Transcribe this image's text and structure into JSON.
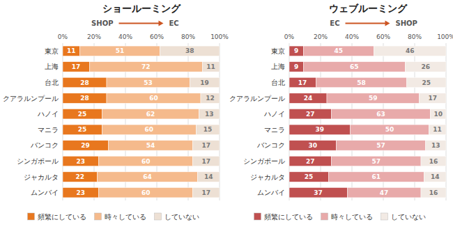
{
  "chart_data": [
    {
      "type": "bar",
      "title": "ショールーミング",
      "orientation": "horizontal",
      "stacked": true,
      "data_labels": true,
      "grid": true,
      "legend": "bottom",
      "annotations": [
        "SHOP",
        "EC"
      ],
      "categories": [
        "東京",
        "上海",
        "台北",
        "クアラルンプール",
        "ハノイ",
        "マニラ",
        "バンコク",
        "シンガポール",
        "ジャカルタ",
        "ムンバイ"
      ],
      "series": [
        {
          "name": "頻繁にしている",
          "color": "#E8771E",
          "values": [
            11,
            17,
            28,
            28,
            25,
            25,
            29,
            23,
            22,
            23
          ]
        },
        {
          "name": "時々している",
          "color": "#F5BA8C",
          "values": [
            51,
            72,
            53,
            60,
            62,
            60,
            54,
            60,
            64,
            60
          ]
        },
        {
          "name": "していない",
          "color": "#EDE0D4",
          "values": [
            38,
            11,
            19,
            12,
            13,
            15,
            17,
            17,
            14,
            17
          ]
        }
      ],
      "xlim": [
        0,
        100
      ],
      "xticks": [
        {
          "value": 0,
          "label": "0%"
        },
        {
          "value": 20,
          "label": "20%"
        },
        {
          "value": 40,
          "label": "40%"
        },
        {
          "value": 60,
          "label": "60%"
        },
        {
          "value": 80,
          "label": "80%"
        },
        {
          "value": 100,
          "label": "100%"
        }
      ]
    },
    {
      "type": "bar",
      "title": "ウェブルーミング",
      "orientation": "horizontal",
      "stacked": true,
      "data_labels": true,
      "grid": true,
      "legend": "bottom",
      "annotations": [
        "EC",
        "SHOP"
      ],
      "categories": [
        "東京",
        "上海",
        "台北",
        "クアラルンプール",
        "ハノイ",
        "マニラ",
        "バンコク",
        "シンガポール",
        "ジャカルタ",
        "ムンバイ"
      ],
      "series": [
        {
          "name": "頻繁にしている",
          "color": "#C05050",
          "values": [
            9,
            9,
            17,
            24,
            27,
            39,
            30,
            27,
            25,
            37
          ]
        },
        {
          "name": "時々している",
          "color": "#E8AAAA",
          "values": [
            45,
            65,
            58,
            59,
            63,
            50,
            57,
            57,
            61,
            47
          ]
        },
        {
          "name": "していない",
          "color": "#F2EAE4",
          "values": [
            46,
            26,
            25,
            17,
            10,
            11,
            13,
            16,
            14,
            16
          ]
        }
      ],
      "xlim": [
        0,
        100
      ],
      "xticks": [
        {
          "value": 0,
          "label": "0%"
        },
        {
          "value": 20,
          "label": "20%"
        },
        {
          "value": 40,
          "label": "40%"
        },
        {
          "value": 60,
          "label": "60%"
        },
        {
          "value": 80,
          "label": "80%"
        },
        {
          "value": 100,
          "label": "100%"
        }
      ]
    }
  ]
}
